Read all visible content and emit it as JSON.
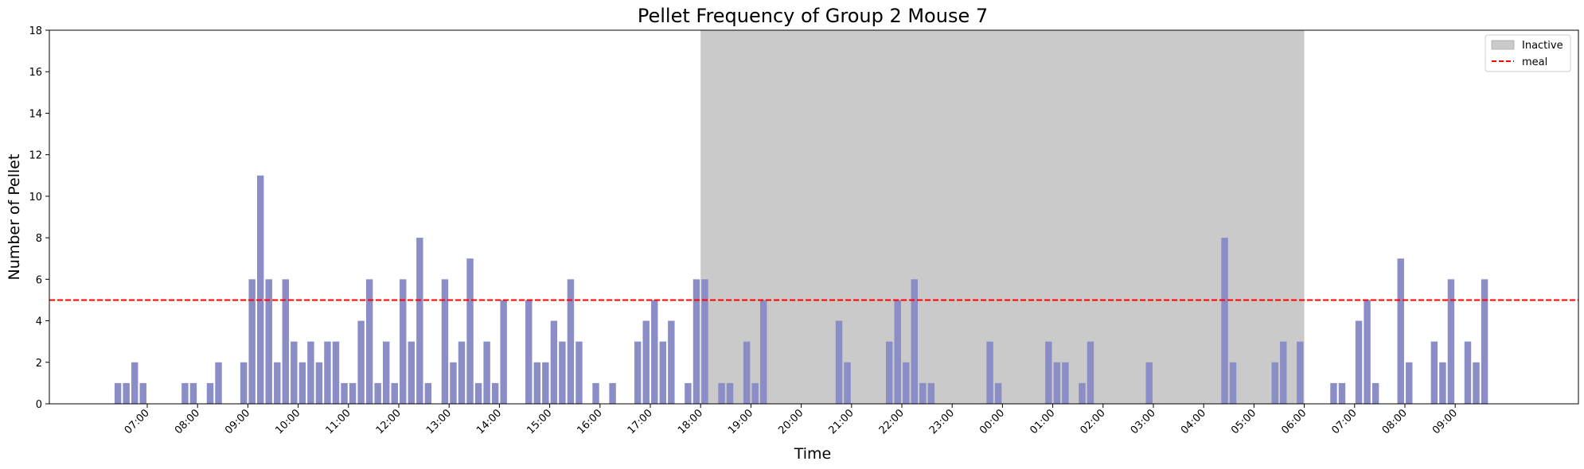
{
  "chart_data": {
    "type": "bar",
    "title": "Pellet Frequency of Group 2 Mouse 7",
    "xlabel": "Time",
    "ylabel": "Number of Pellet",
    "ylim": [
      0,
      18
    ],
    "yticks": [
      0,
      2,
      4,
      6,
      8,
      10,
      12,
      14,
      16,
      18
    ],
    "xtick_labels": [
      "07:00",
      "08:00",
      "09:00",
      "10:00",
      "11:00",
      "12:00",
      "13:00",
      "14:00",
      "15:00",
      "16:00",
      "17:00",
      "18:00",
      "19:00",
      "20:00",
      "21:00",
      "22:00",
      "23:00",
      "00:00",
      "01:00",
      "02:00",
      "03:00",
      "04:00",
      "05:00",
      "06:00",
      "07:00",
      "08:00",
      "09:00"
    ],
    "bar_interval_minutes": 10,
    "bar_color": "#8b8dc7",
    "bars": [
      {
        "t": "06:25",
        "v": 1
      },
      {
        "t": "06:35",
        "v": 1
      },
      {
        "t": "06:45",
        "v": 2
      },
      {
        "t": "06:55",
        "v": 1
      },
      {
        "t": "07:45",
        "v": 1
      },
      {
        "t": "07:55",
        "v": 1
      },
      {
        "t": "08:15",
        "v": 1
      },
      {
        "t": "08:25",
        "v": 2
      },
      {
        "t": "08:55",
        "v": 2
      },
      {
        "t": "09:05",
        "v": 6
      },
      {
        "t": "09:15",
        "v": 11
      },
      {
        "t": "09:25",
        "v": 6
      },
      {
        "t": "09:35",
        "v": 2
      },
      {
        "t": "09:45",
        "v": 6
      },
      {
        "t": "09:55",
        "v": 3
      },
      {
        "t": "10:05",
        "v": 2
      },
      {
        "t": "10:15",
        "v": 3
      },
      {
        "t": "10:25",
        "v": 2
      },
      {
        "t": "10:35",
        "v": 3
      },
      {
        "t": "10:45",
        "v": 3
      },
      {
        "t": "10:55",
        "v": 1
      },
      {
        "t": "11:05",
        "v": 1
      },
      {
        "t": "11:15",
        "v": 4
      },
      {
        "t": "11:25",
        "v": 6
      },
      {
        "t": "11:35",
        "v": 1
      },
      {
        "t": "11:45",
        "v": 3
      },
      {
        "t": "11:55",
        "v": 1
      },
      {
        "t": "12:05",
        "v": 6
      },
      {
        "t": "12:15",
        "v": 3
      },
      {
        "t": "12:25",
        "v": 8
      },
      {
        "t": "12:35",
        "v": 1
      },
      {
        "t": "12:55",
        "v": 6
      },
      {
        "t": "13:05",
        "v": 2
      },
      {
        "t": "13:15",
        "v": 3
      },
      {
        "t": "13:25",
        "v": 7
      },
      {
        "t": "13:35",
        "v": 1
      },
      {
        "t": "13:45",
        "v": 3
      },
      {
        "t": "13:55",
        "v": 1
      },
      {
        "t": "14:05",
        "v": 5
      },
      {
        "t": "14:35",
        "v": 5
      },
      {
        "t": "14:45",
        "v": 2
      },
      {
        "t": "14:55",
        "v": 2
      },
      {
        "t": "15:05",
        "v": 4
      },
      {
        "t": "15:15",
        "v": 3
      },
      {
        "t": "15:25",
        "v": 6
      },
      {
        "t": "15:35",
        "v": 3
      },
      {
        "t": "15:55",
        "v": 1
      },
      {
        "t": "16:15",
        "v": 1
      },
      {
        "t": "16:45",
        "v": 3
      },
      {
        "t": "16:55",
        "v": 4
      },
      {
        "t": "17:05",
        "v": 5
      },
      {
        "t": "17:15",
        "v": 3
      },
      {
        "t": "17:25",
        "v": 4
      },
      {
        "t": "17:45",
        "v": 1
      },
      {
        "t": "17:55",
        "v": 6
      },
      {
        "t": "18:05",
        "v": 6
      },
      {
        "t": "18:25",
        "v": 1
      },
      {
        "t": "18:35",
        "v": 1
      },
      {
        "t": "18:55",
        "v": 3
      },
      {
        "t": "19:05",
        "v": 1
      },
      {
        "t": "19:15",
        "v": 5
      },
      {
        "t": "20:45",
        "v": 4
      },
      {
        "t": "20:55",
        "v": 2
      },
      {
        "t": "21:45",
        "v": 3
      },
      {
        "t": "21:55",
        "v": 5
      },
      {
        "t": "22:05",
        "v": 2
      },
      {
        "t": "22:15",
        "v": 6
      },
      {
        "t": "22:25",
        "v": 1
      },
      {
        "t": "22:35",
        "v": 1
      },
      {
        "t": "23:45",
        "v": 3
      },
      {
        "t": "23:55",
        "v": 1
      },
      {
        "t": "00:55",
        "v": 3
      },
      {
        "t": "01:05",
        "v": 2
      },
      {
        "t": "01:15",
        "v": 2
      },
      {
        "t": "01:35",
        "v": 1
      },
      {
        "t": "01:45",
        "v": 3
      },
      {
        "t": "02:55",
        "v": 2
      },
      {
        "t": "04:25",
        "v": 8
      },
      {
        "t": "04:35",
        "v": 2
      },
      {
        "t": "05:25",
        "v": 2
      },
      {
        "t": "05:35",
        "v": 3
      },
      {
        "t": "05:55",
        "v": 3
      },
      {
        "t": "06:35",
        "v": 1
      },
      {
        "t": "06:45",
        "v": 1
      },
      {
        "t": "07:05",
        "v": 4
      },
      {
        "t": "07:15",
        "v": 5
      },
      {
        "t": "07:25",
        "v": 1
      },
      {
        "t": "07:55",
        "v": 7
      },
      {
        "t": "08:05",
        "v": 2
      },
      {
        "t": "08:35",
        "v": 3
      },
      {
        "t": "08:45",
        "v": 2
      },
      {
        "t": "08:55",
        "v": 6
      },
      {
        "t": "09:15",
        "v": 3
      },
      {
        "t": "09:25",
        "v": 2
      },
      {
        "t": "09:35",
        "v": 6
      }
    ],
    "inactive_period": {
      "start": "18:00",
      "end": "06:00",
      "color": "#cacaca"
    },
    "meal_threshold": 5,
    "meal_color": "#ff0000",
    "legend": {
      "placement": "top-right",
      "entries": [
        {
          "label": "Inactive",
          "style": "patch",
          "color": "#cacaca"
        },
        {
          "label": "meal",
          "style": "dashed-line",
          "color": "#ff0000"
        }
      ]
    },
    "grid": false
  }
}
